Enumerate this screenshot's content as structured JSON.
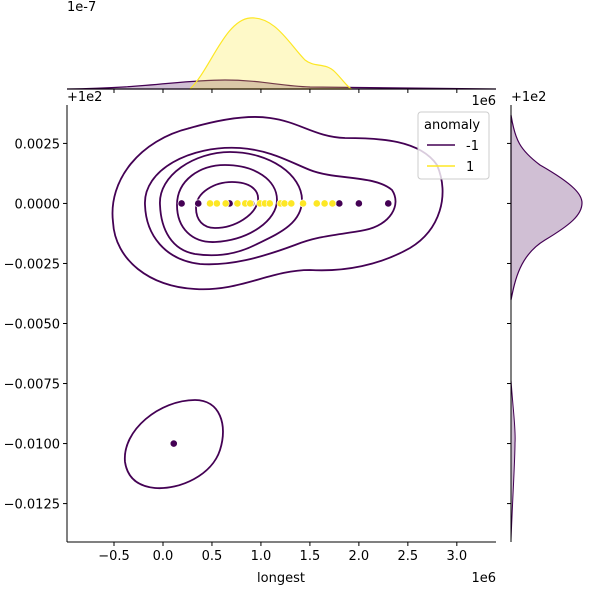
{
  "chart_data": {
    "type": "scatter",
    "subtype": "jointplot-kde",
    "xlabel": "longest",
    "ylabel": "",
    "x_offset_label": "1e6",
    "y_offset_label": "+1e2",
    "top_marginal_scale_label": "1e-7",
    "top_marginal_offset_label": "1e6",
    "right_marginal_offset_label": "+1e2",
    "xlim": [
      -0.98,
      3.4
    ],
    "ylim": [
      -0.0141,
      0.0041
    ],
    "x_ticks": [
      "-0.5",
      "0.0",
      "0.5",
      "1.0",
      "1.5",
      "2.0",
      "2.5",
      "3.0"
    ],
    "x_tick_values": [
      -0.5,
      0,
      0.5,
      1.0,
      1.5,
      2.0,
      2.5,
      3.0
    ],
    "y_ticks": [
      "0.0025",
      "0.0000",
      "-0.0025",
      "-0.0050",
      "-0.0075",
      "-0.0100",
      "-0.0125"
    ],
    "y_tick_values": [
      0.0025,
      0,
      -0.0025,
      -0.005,
      -0.0075,
      -0.01,
      -0.0125
    ],
    "legend": {
      "title": "anomaly",
      "placement": "top-right",
      "entries": [
        {
          "label": "-1",
          "color": "#440154"
        },
        {
          "label": "1",
          "color": "#fde725"
        }
      ]
    },
    "series": [
      {
        "name": "-1",
        "color": "#440154",
        "points": [
          [
            0.19,
            0
          ],
          [
            0.36,
            0
          ],
          [
            0.68,
            0
          ],
          [
            0.9,
            0
          ],
          [
            1.8,
            0
          ],
          [
            2.0,
            0
          ],
          [
            2.3,
            0
          ],
          [
            0.11,
            -0.01
          ]
        ]
      },
      {
        "name": "1",
        "color": "#fde725",
        "points": [
          [
            0.48,
            0
          ],
          [
            0.55,
            0
          ],
          [
            0.64,
            0
          ],
          [
            0.76,
            0
          ],
          [
            0.84,
            0
          ],
          [
            0.89,
            0
          ],
          [
            0.99,
            0
          ],
          [
            1.04,
            0
          ],
          [
            1.09,
            0
          ],
          [
            1.2,
            0
          ],
          [
            1.24,
            0
          ],
          [
            1.31,
            0
          ],
          [
            1.43,
            0
          ],
          [
            1.57,
            0
          ],
          [
            1.65,
            0
          ],
          [
            1.73,
            0
          ]
        ]
      }
    ],
    "grid": false
  }
}
